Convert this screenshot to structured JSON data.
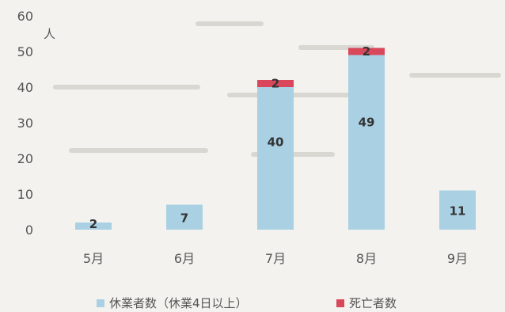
{
  "chart_data": {
    "type": "bar",
    "stacked": true,
    "categories": [
      "5月",
      "6月",
      "7月",
      "8月",
      "9月"
    ],
    "series": [
      {
        "name": "休業者数（休業4日以上）",
        "values": [
          2,
          7,
          40,
          49,
          11
        ],
        "color": "#a9d1e3"
      },
      {
        "name": "死亡者数",
        "values": [
          0,
          0,
          2,
          2,
          0
        ],
        "color": "#d9475b"
      }
    ],
    "data_labels": [
      [
        "2",
        "7",
        "40",
        "49",
        "11"
      ],
      [
        "",
        "",
        "2",
        "2",
        ""
      ]
    ],
    "ylabel": "人",
    "ylim": [
      0,
      60
    ],
    "yticks": [
      0,
      10,
      20,
      30,
      40,
      50,
      60
    ],
    "grid": false,
    "legend_position": "bottom"
  }
}
